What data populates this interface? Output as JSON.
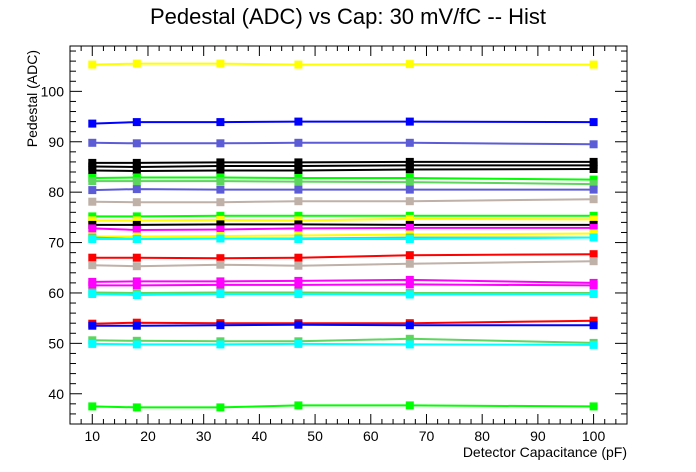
{
  "chart_data": {
    "type": "line",
    "title": "Pedestal (ADC) vs Cap: 30 mV/fC -- Hist",
    "xlabel": "Detector Capacitance (pF)",
    "ylabel": "Pedestal (ADC)",
    "xlim": [
      6,
      106
    ],
    "ylim": [
      34,
      109
    ],
    "x_ticks": [
      10,
      20,
      30,
      40,
      50,
      60,
      70,
      80,
      90,
      100
    ],
    "y_ticks": [
      40,
      50,
      60,
      70,
      80,
      90,
      100
    ],
    "grid": false,
    "legend": "none",
    "x": [
      10,
      18,
      33,
      47,
      67,
      100
    ],
    "series": [
      {
        "color": "#ffff00",
        "values": [
          105.3,
          105.5,
          105.5,
          105.3,
          105.4,
          105.3
        ]
      },
      {
        "color": "#0000ff",
        "values": [
          93.6,
          93.9,
          93.9,
          94.0,
          94.0,
          93.9
        ]
      },
      {
        "color": "#5c5cd6",
        "values": [
          89.8,
          89.7,
          89.7,
          89.8,
          89.8,
          89.5
        ]
      },
      {
        "color": "#000000",
        "values": [
          85.8,
          85.8,
          85.9,
          85.9,
          86.0,
          86.0
        ]
      },
      {
        "color": "#000000",
        "values": [
          85.1,
          85.0,
          85.2,
          85.2,
          85.3,
          85.3
        ]
      },
      {
        "color": "#000000",
        "values": [
          84.3,
          84.2,
          84.3,
          84.3,
          84.5,
          84.6
        ]
      },
      {
        "color": "#00ff00",
        "values": [
          82.8,
          82.9,
          82.9,
          82.8,
          82.8,
          82.5
        ]
      },
      {
        "color": "#5cd65c",
        "values": [
          82.2,
          82.2,
          82.2,
          82.1,
          82.0,
          81.6
        ]
      },
      {
        "color": "#5c5cd6",
        "values": [
          80.4,
          80.6,
          80.5,
          80.5,
          80.5,
          80.5
        ]
      },
      {
        "color": "#bfb0a8",
        "values": [
          78.1,
          78.0,
          78.0,
          78.2,
          78.2,
          78.6
        ]
      },
      {
        "color": "#00ff00",
        "values": [
          75.2,
          75.2,
          75.3,
          75.3,
          75.3,
          75.3
        ]
      },
      {
        "color": "#ffff00",
        "values": [
          74.4,
          74.4,
          74.5,
          74.4,
          74.7,
          74.6
        ]
      },
      {
        "color": "#000000",
        "values": [
          73.5,
          73.5,
          73.6,
          73.6,
          73.5,
          73.5
        ]
      },
      {
        "color": "#ff00ff",
        "values": [
          72.8,
          72.5,
          72.6,
          72.8,
          72.9,
          72.9
        ]
      },
      {
        "color": "#ffff00",
        "values": [
          71.2,
          71.2,
          71.3,
          71.4,
          71.6,
          71.8
        ]
      },
      {
        "color": "#5cd65c",
        "values": [
          71.0,
          70.7,
          70.8,
          70.8,
          71.0,
          71.0
        ]
      },
      {
        "color": "#00ffff",
        "values": [
          70.7,
          70.7,
          70.8,
          70.7,
          70.7,
          71.0
        ]
      },
      {
        "color": "#ff0000",
        "values": [
          67.0,
          67.0,
          66.9,
          67.0,
          67.5,
          67.7
        ]
      },
      {
        "color": "#bfb0a8",
        "values": [
          65.5,
          65.3,
          65.6,
          65.4,
          65.8,
          66.3
        ]
      },
      {
        "color": "#ff00ff",
        "values": [
          62.2,
          62.3,
          62.3,
          62.4,
          62.6,
          62.0
        ]
      },
      {
        "color": "#ff00ff",
        "values": [
          61.5,
          61.5,
          61.6,
          61.6,
          61.7,
          61.5
        ]
      },
      {
        "color": "#5cd65c",
        "values": [
          60.1,
          60.0,
          60.1,
          60.1,
          60.0,
          60.0
        ]
      },
      {
        "color": "#00ffff",
        "values": [
          59.8,
          59.6,
          59.8,
          59.8,
          59.7,
          59.8
        ]
      },
      {
        "color": "#ff0000",
        "values": [
          53.9,
          54.1,
          54.0,
          54.0,
          54.0,
          54.5
        ]
      },
      {
        "color": "#0000ff",
        "values": [
          53.5,
          53.5,
          53.6,
          53.7,
          53.6,
          53.6
        ]
      },
      {
        "color": "#5cd65c",
        "values": [
          50.6,
          50.5,
          50.4,
          50.4,
          50.9,
          50.1
        ]
      },
      {
        "color": "#00ffff",
        "values": [
          49.9,
          49.8,
          49.8,
          49.9,
          49.8,
          49.7
        ]
      },
      {
        "color": "#00ff00",
        "values": [
          37.5,
          37.3,
          37.3,
          37.7,
          37.7,
          37.5
        ]
      }
    ]
  }
}
